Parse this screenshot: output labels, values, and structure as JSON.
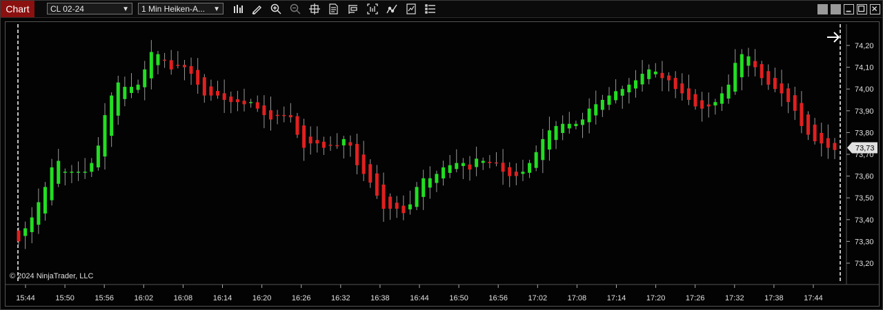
{
  "window": {
    "tab_label": "Chart",
    "instrument": "CL 02-24",
    "period": "1 Min Heiken-A...",
    "copyright": "© 2024 NinjaTrader, LLC"
  },
  "toolbar_icons": [
    "bar-type-icon",
    "drawing-tool-icon",
    "zoom-in-icon",
    "zoom-out-icon",
    "crosshair-icon",
    "data-box-icon",
    "chart-trader-icon",
    "indicators-icon",
    "strategies-icon",
    "templates-icon",
    "properties-icon"
  ],
  "colors": {
    "up": "#22dd22",
    "down": "#e02020",
    "wick": "#9a9a9a",
    "price_marker_bg": "#e0e0e0",
    "tab_bg": "#8b1010"
  },
  "chart_data": {
    "type": "candlestick",
    "price_axis_ticks": [
      "74,20",
      "74,10",
      "74,00",
      "73,90",
      "73,80",
      "73,70",
      "73,60",
      "73,50",
      "73,40",
      "73,30",
      "73,20"
    ],
    "time_axis_ticks": [
      "15:44",
      "15:50",
      "15:56",
      "16:02",
      "16:08",
      "16:14",
      "16:20",
      "16:26",
      "16:32",
      "16:38",
      "16:44",
      "16:50",
      "16:56",
      "17:02",
      "17:08",
      "17:14",
      "17:20",
      "17:26",
      "17:32",
      "17:38",
      "17:44"
    ],
    "last_price": "73,73",
    "ylim": [
      73.14,
      74.26
    ],
    "closes": [
      73.3,
      73.36,
      73.41,
      73.48,
      73.55,
      73.64,
      73.67,
      73.62,
      73.62,
      73.62,
      73.62,
      73.66,
      73.74,
      73.88,
      73.97,
      74.03,
      74.01,
      74.01,
      74.02,
      74.09,
      74.17,
      74.16,
      74.13,
      74.09,
      74.11,
      74.1,
      74.07,
      74.02,
      73.97,
      73.97,
      73.97,
      73.95,
      73.94,
      73.94,
      73.93,
      73.94,
      73.91,
      73.88,
      73.86,
      73.88,
      73.88,
      73.87,
      73.79,
      73.73,
      73.75,
      73.75,
      73.73,
      73.74,
      73.74,
      73.77,
      73.74,
      73.65,
      73.61,
      73.57,
      73.51,
      73.45,
      73.45,
      73.45,
      73.43,
      73.47,
      73.55,
      73.59,
      73.59,
      73.61,
      73.64,
      73.65,
      73.66,
      73.66,
      73.63,
      73.68,
      73.67,
      73.66,
      73.66,
      73.62,
      73.6,
      73.6,
      73.62,
      73.66,
      73.71,
      73.77,
      73.81,
      73.83,
      73.84,
      73.84,
      73.84,
      73.86,
      73.91,
      73.93,
      73.95,
      73.97,
      73.99,
      74.0,
      74.02,
      74.04,
      74.07,
      74.09,
      74.08,
      74.05,
      74.04,
      74.0,
      73.98,
      73.95,
      73.92,
      73.91,
      73.92,
      73.94,
      73.98,
      74.02,
      74.12,
      74.16,
      74.15,
      74.1,
      74.05,
      74.02,
      74.0,
      73.98,
      73.94,
      73.9,
      73.83,
      73.79,
      73.76,
      73.75,
      73.73,
      73.72
    ]
  }
}
